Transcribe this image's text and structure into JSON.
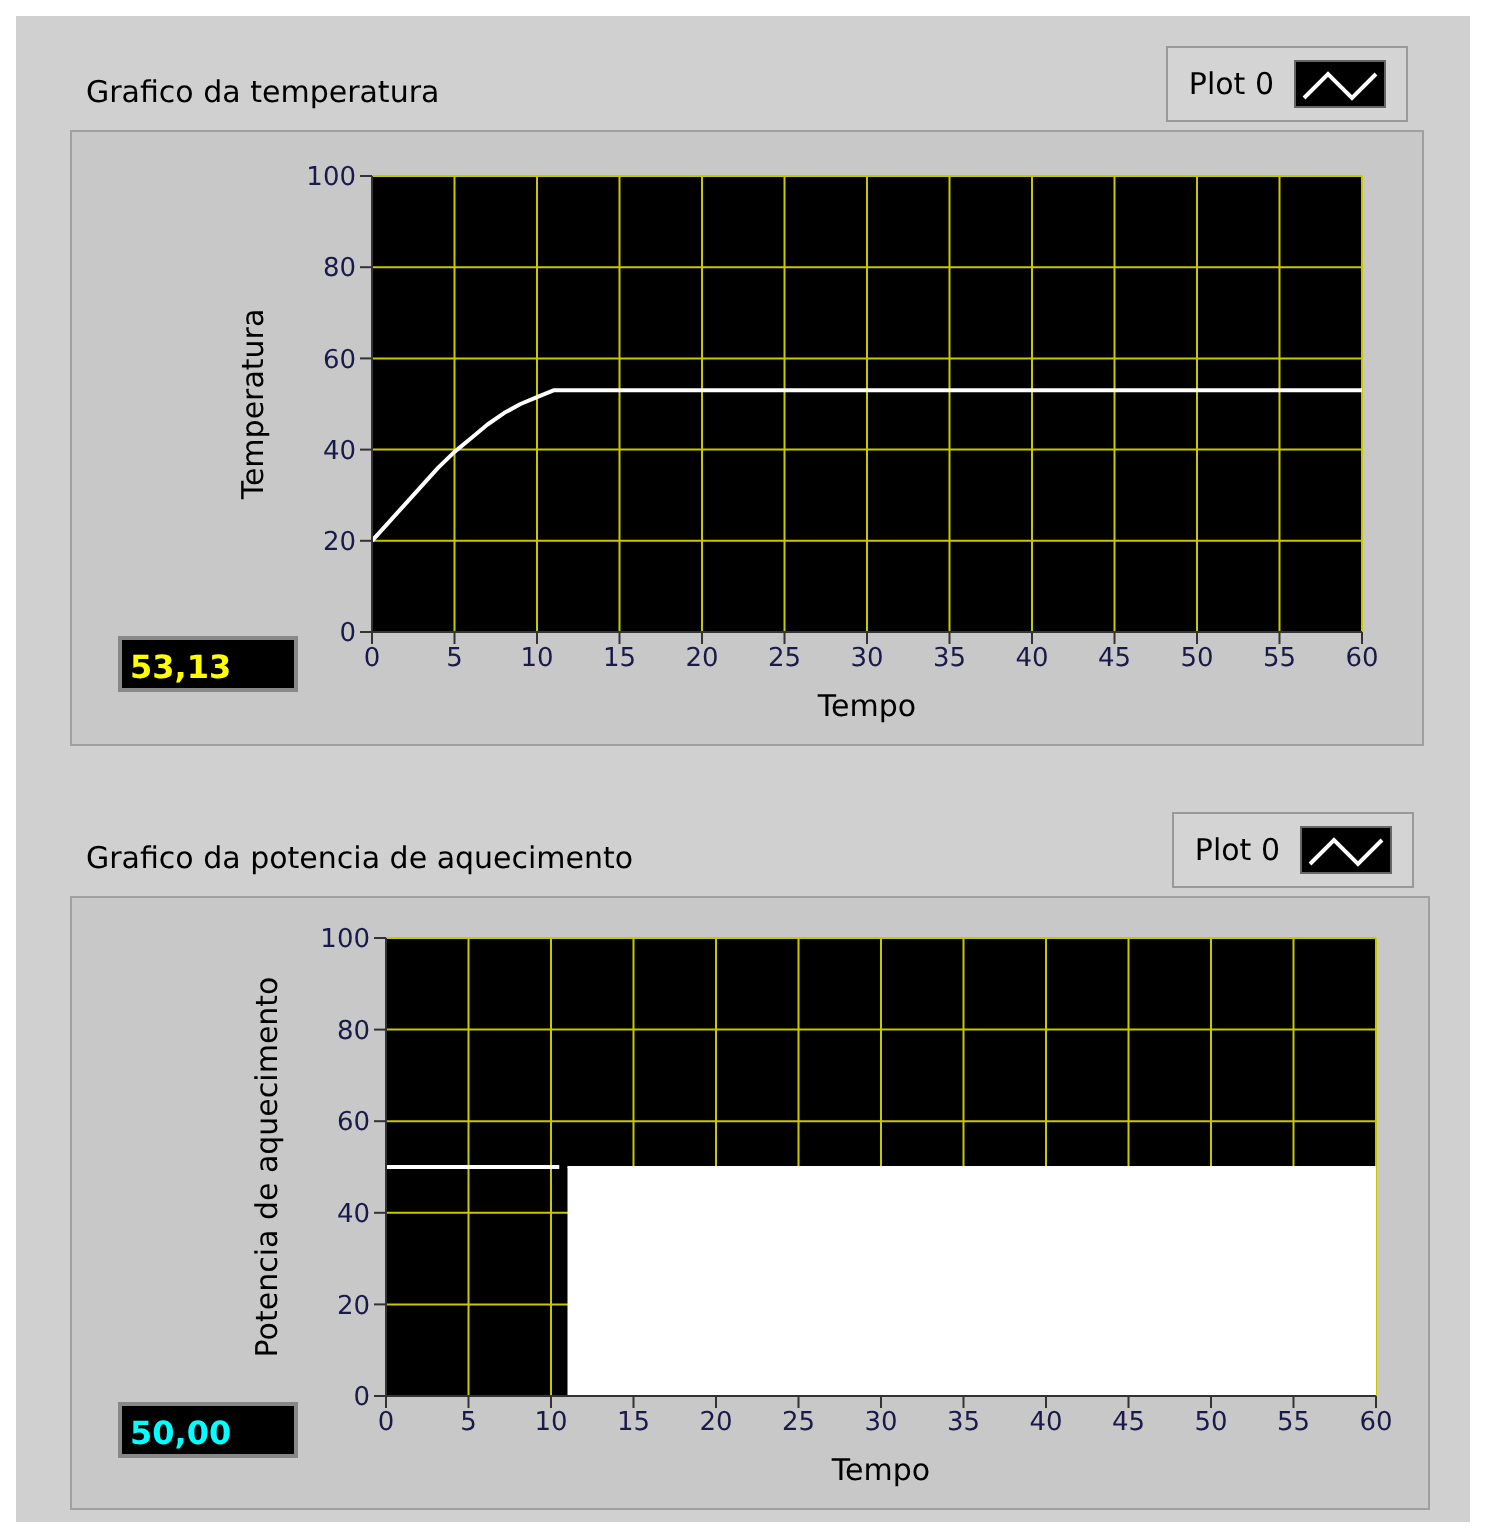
{
  "chart_data": [
    {
      "type": "line",
      "title": "Grafico da temperatura",
      "xlabel": "Tempo",
      "ylabel": "Temperatura",
      "xlim": [
        0,
        60
      ],
      "xticks": [
        0,
        5,
        10,
        15,
        20,
        25,
        30,
        35,
        40,
        45,
        50,
        55,
        60
      ],
      "ylim": [
        0,
        100
      ],
      "yticks": [
        0,
        20,
        40,
        60,
        80,
        100
      ],
      "grid": true,
      "legend": "top right",
      "annotations": [
        "53,13"
      ],
      "series": [
        {
          "name": "Plot 0",
          "color": "#ffffff",
          "x": [
            0,
            1,
            2,
            3,
            4,
            5,
            6,
            7,
            8,
            9,
            10,
            11,
            60
          ],
          "values": [
            20,
            24,
            28,
            32,
            36,
            39.5,
            42.5,
            45.5,
            48,
            50,
            51.5,
            53,
            53
          ]
        }
      ]
    },
    {
      "type": "line",
      "title": "Grafico da potencia de aquecimento",
      "xlabel": "Tempo",
      "ylabel": "Potencia de aquecimento",
      "xlim": [
        0,
        60
      ],
      "xticks": [
        0,
        5,
        10,
        15,
        20,
        25,
        30,
        35,
        40,
        45,
        50,
        55,
        60
      ],
      "ylim": [
        0,
        100
      ],
      "yticks": [
        0,
        20,
        40,
        60,
        80,
        100
      ],
      "grid": true,
      "legend": "top right",
      "annotations": [
        "50,00"
      ],
      "series": [
        {
          "name": "Plot 0",
          "color": "#ffffff",
          "x": [
            0,
            10.5
          ],
          "values": [
            50,
            50
          ]
        },
        {
          "type": "area",
          "color": "#ffffff",
          "x": [
            11,
            60
          ],
          "values": [
            50,
            50
          ]
        }
      ]
    }
  ]
}
